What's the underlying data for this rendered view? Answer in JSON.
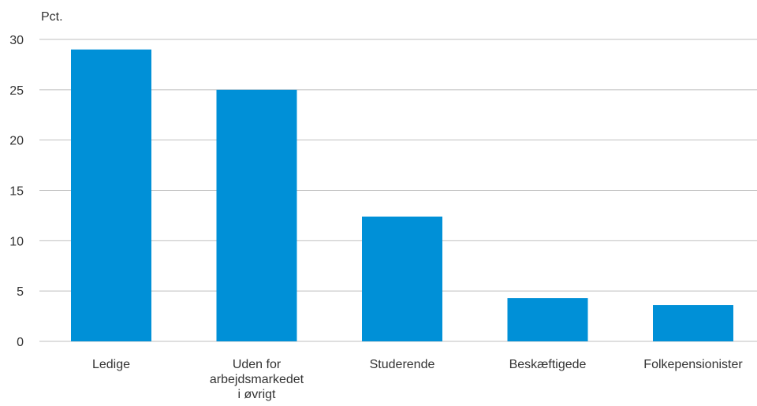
{
  "chart_data": {
    "type": "bar",
    "ylabel": "Pct.",
    "categories": [
      [
        "Ledige"
      ],
      [
        "Uden for",
        "arbejdsmarkedet",
        "i øvrigt"
      ],
      [
        "Studerende"
      ],
      [
        "Beskæftigede"
      ],
      [
        "Folkepensionister"
      ]
    ],
    "values": [
      29.0,
      25.0,
      12.4,
      4.3,
      3.6
    ],
    "ylim": [
      0,
      30
    ],
    "yticks": [
      "0",
      "5",
      "10",
      "15",
      "20",
      "25",
      "30"
    ],
    "grid": true,
    "bar_color": "#0090d7"
  }
}
